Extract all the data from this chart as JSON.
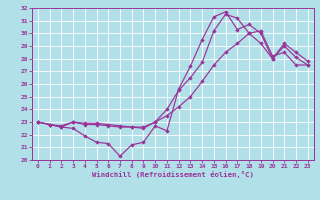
{
  "xlabel": "Windchill (Refroidissement éolien,°C)",
  "xlim": [
    -0.5,
    23.5
  ],
  "ylim": [
    20,
    32
  ],
  "yticks": [
    20,
    21,
    22,
    23,
    24,
    25,
    26,
    27,
    28,
    29,
    30,
    31,
    32
  ],
  "xticks": [
    0,
    1,
    2,
    3,
    4,
    5,
    6,
    7,
    8,
    9,
    10,
    11,
    12,
    13,
    14,
    15,
    16,
    17,
    18,
    19,
    20,
    21,
    22,
    23
  ],
  "bg_color": "#b2e0e8",
  "line_color": "#993399",
  "grid_color": "#ffffff",
  "line1_x": [
    0,
    1,
    2,
    3,
    4,
    5,
    6,
    7,
    8,
    9,
    10,
    11,
    12,
    13,
    14,
    15,
    16,
    17,
    18,
    19,
    20,
    21,
    22,
    23
  ],
  "line1_y": [
    23.0,
    22.8,
    22.6,
    22.5,
    21.9,
    21.4,
    21.3,
    20.3,
    21.2,
    21.4,
    22.7,
    22.3,
    25.6,
    27.4,
    29.5,
    31.3,
    31.7,
    30.3,
    30.7,
    30.0,
    28.0,
    29.0,
    28.1,
    27.5
  ],
  "line2_x": [
    0,
    1,
    2,
    3,
    4,
    5,
    6,
    7,
    8,
    9,
    10,
    11,
    12,
    13,
    14,
    15,
    16,
    17,
    18,
    19,
    20,
    21,
    22,
    23
  ],
  "line2_y": [
    23.0,
    22.8,
    22.7,
    23.0,
    22.9,
    22.9,
    22.8,
    22.7,
    22.6,
    22.6,
    23.0,
    23.5,
    24.2,
    25.0,
    26.2,
    27.5,
    28.5,
    29.2,
    30.0,
    30.2,
    28.2,
    28.5,
    27.5,
    27.5
  ],
  "line3_x": [
    0,
    1,
    2,
    3,
    4,
    5,
    6,
    7,
    8,
    9,
    10,
    11,
    12,
    13,
    14,
    15,
    16,
    17,
    18,
    19,
    20,
    21,
    22,
    23
  ],
  "line3_y": [
    23.0,
    22.8,
    22.6,
    23.0,
    22.8,
    22.8,
    22.7,
    22.6,
    22.6,
    22.5,
    23.0,
    24.0,
    25.5,
    26.5,
    27.7,
    30.2,
    31.5,
    31.2,
    30.0,
    29.2,
    28.0,
    29.2,
    28.5,
    27.8
  ]
}
